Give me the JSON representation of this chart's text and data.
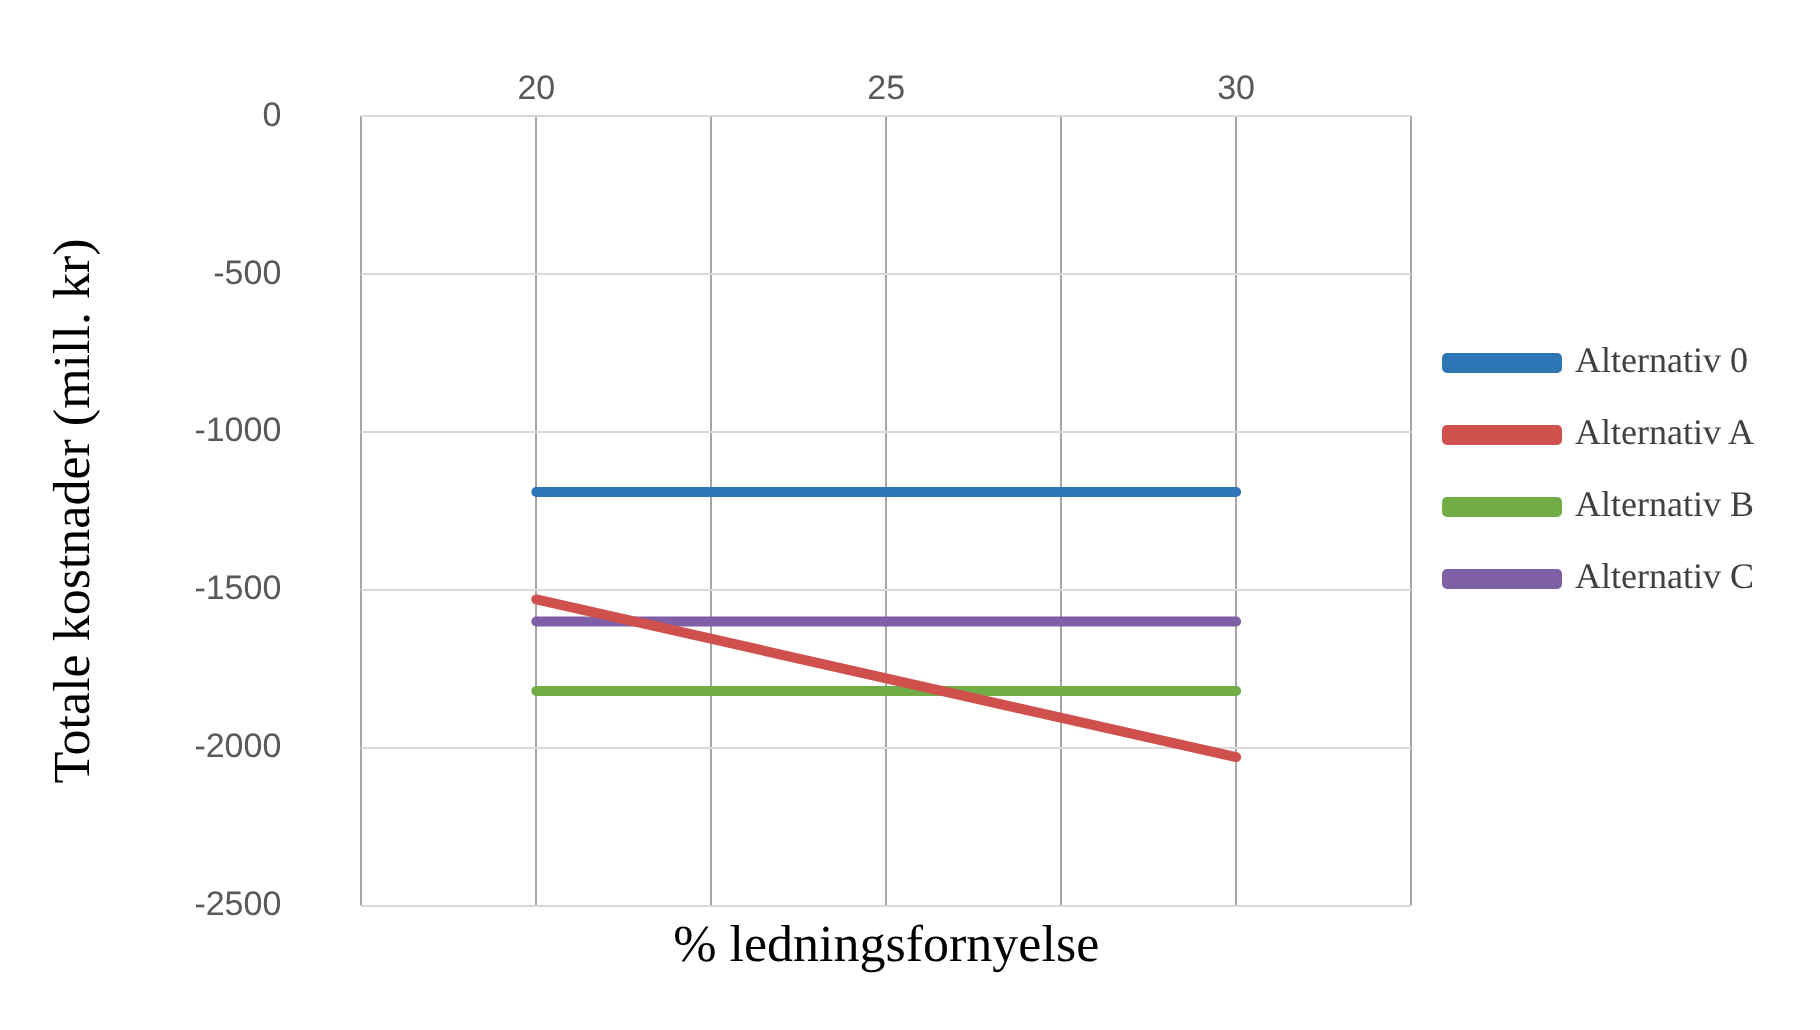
{
  "chart_data": {
    "type": "line",
    "xlabel": "% ledningsfornyelse",
    "ylabel": "Totale kostnader (mill. kr)",
    "x": [
      20,
      25,
      30
    ],
    "series": [
      {
        "name": "Alternativ 0",
        "color": "#2e75b6",
        "values": [
          -1190,
          -1190,
          -1190
        ]
      },
      {
        "name": "Alternativ A",
        "color": "#d0504d",
        "values": [
          -1530,
          -1780,
          -2030
        ]
      },
      {
        "name": "Alternativ B",
        "color": "#70ad47",
        "values": [
          -1820,
          -1820,
          -1820
        ]
      },
      {
        "name": "Alternativ C",
        "color": "#7f5fa5",
        "values": [
          -1600,
          -1600,
          -1600
        ]
      }
    ],
    "xlim": [
      17.5,
      32.5
    ],
    "xticks": [
      {
        "value": 17.5,
        "label": null
      },
      20,
      {
        "value": 22.5,
        "label": null
      },
      25,
      {
        "value": 27.5,
        "label": null
      },
      30,
      {
        "value": 32.5,
        "label": null
      }
    ],
    "ylim": [
      -2500,
      0
    ],
    "yticks": [
      -2500,
      -2000,
      -1500,
      -1000,
      -500,
      0
    ],
    "grid": true,
    "legend": "right",
    "marker": "none",
    "line_style": "solid"
  }
}
